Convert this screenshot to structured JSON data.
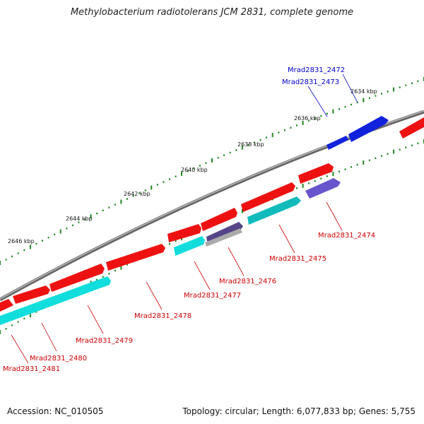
{
  "title": "Methylobacterium radiotolerans JCM 2831, complete genome",
  "footer": {
    "accession": "Accession: NC_010505",
    "summary": "Topology: circular; Length: 6,077,833 bp; Genes: 5,755"
  },
  "colors": {
    "forward_cds": "#ee1111",
    "reverse_cds": "#11dddd",
    "highlight": "#1122dd",
    "muted": "#6655cc",
    "pseudo": "#aaaaaa",
    "backbone": "#888888",
    "tick": "#228822",
    "label_red": "#cc0000",
    "label_blue": "#0000cc"
  },
  "kbp_labels": [
    "2634 kbp",
    "2636 kbp",
    "2638 kbp",
    "2640 kbp",
    "2642 kbp",
    "2644 kbp",
    "2646 kbp"
  ],
  "genes": [
    {
      "id": "Mrad2831_2472",
      "strand": "+",
      "color": "highlight"
    },
    {
      "id": "Mrad2831_2473",
      "strand": "+",
      "color": "highlight"
    },
    {
      "id": "Mrad2831_2474",
      "strand": "-",
      "color": "muted"
    },
    {
      "id": "Mrad2831_2475",
      "strand": "-",
      "color": "reverse_cds"
    },
    {
      "id": "Mrad2831_2476",
      "strand": "-",
      "color": "pseudo"
    },
    {
      "id": "Mrad2831_2477",
      "strand": "-",
      "color": "reverse_cds"
    },
    {
      "id": "Mrad2831_2478",
      "strand": "+",
      "color": "forward_cds"
    },
    {
      "id": "Mrad2831_2479",
      "strand": "-",
      "color": "reverse_cds"
    },
    {
      "id": "Mrad2831_2480",
      "strand": "+",
      "color": "forward_cds"
    },
    {
      "id": "Mrad2831_2481",
      "strand": "+",
      "color": "forward_cds"
    }
  ]
}
